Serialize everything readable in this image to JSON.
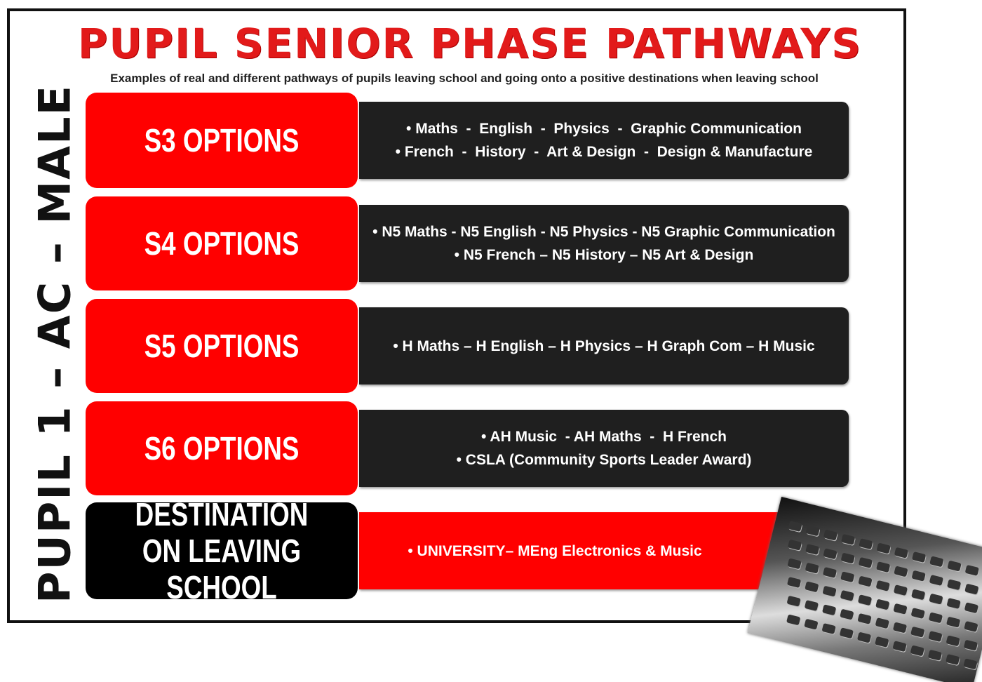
{
  "header": {
    "title": "PUPIL SENIOR PHASE PATHWAYS",
    "subtitle": "Examples of real and different pathways of pupils leaving school and going onto a positive destinations when leaving school"
  },
  "side_label": "PUPIL 1 – AC – MALE",
  "rows": [
    {
      "label": "S3 OPTIONS",
      "lines": [
        "• Maths  -  English  -  Physics  -  Graphic Communication",
        "• French  -  History  -  Art & Design  -  Design & Manufacture"
      ]
    },
    {
      "label": "S4 OPTIONS",
      "lines": [
        "• N5 Maths - N5 English - N5 Physics - N5 Graphic Communication",
        "• N5 French – N5 History – N5 Art & Design"
      ]
    },
    {
      "label": "S5 OPTIONS",
      "lines": [
        "• H Maths – H English – H Physics – H Graph Com – H Music"
      ]
    },
    {
      "label": "S6 OPTIONS",
      "lines": [
        "• AH Music  - AH Maths  -  H French",
        "• CSLA (Community Sports Leader Award)"
      ]
    },
    {
      "label": "DESTINATION ON LEAVING SCHOOL",
      "lines": [
        "• UNIVERSITY– MEng Electronics & Music"
      ]
    }
  ]
}
